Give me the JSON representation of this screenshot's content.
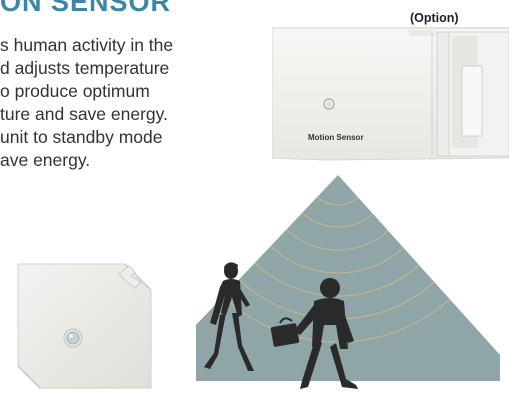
{
  "heading": "ON SENSOR",
  "description_lines": [
    "s human activity in the",
    "d adjusts temperature",
    "o produce optimum",
    "ture and save energy.",
    " unit to standby mode",
    "ave energy."
  ],
  "option_label": "(Option)",
  "motion_sensor_label": "Motion Sensor",
  "colors": {
    "heading": "#3c84a8",
    "detection_zone": "#90a5a7",
    "arcs": "#c9b98a",
    "silhouettes": "#2a2a2a"
  }
}
